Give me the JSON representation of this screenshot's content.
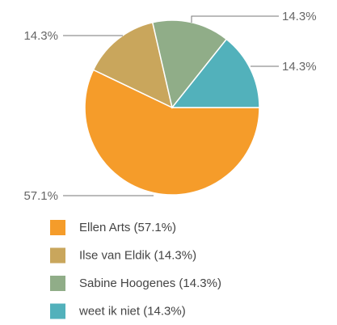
{
  "chart_data": {
    "type": "pie",
    "categories": [
      "Ellen Arts (57.1%)",
      "Ilse van Eldik (14.3%)",
      "Sabine Hoogenes (14.3%)",
      "weet ik niet (14.3%)"
    ],
    "values": [
      57.1,
      14.3,
      14.3,
      14.3
    ],
    "value_labels": [
      "57.1%",
      "14.3%",
      "14.3%",
      "14.3%"
    ],
    "colors": [
      "#f59c2a",
      "#c9a65c",
      "#90ad88",
      "#52b1bb"
    ]
  }
}
